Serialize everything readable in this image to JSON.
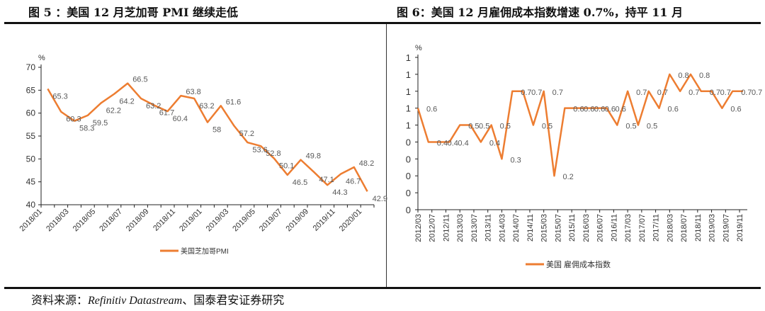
{
  "titles": {
    "left": "图 5 ：美国 12 月芝加哥 PMI 继续走低",
    "right": "图 6：美国 12 月雇佣成本指数增速 0.7%，持平 11 月"
  },
  "footer": {
    "prefix": "资料来源：",
    "source_italic": "Refinitiv Datastream",
    "suffix": "、国泰君安证券研究"
  },
  "colors": {
    "series": "#ED7D31",
    "label": "#595959",
    "axis": "#222222"
  },
  "chart_data": [
    {
      "type": "line",
      "title": "美国12月芝加哥PMI继续走低",
      "ylabel": "%",
      "ylim": [
        40,
        70
      ],
      "yticks": [
        40,
        45,
        50,
        55,
        60,
        65,
        70
      ],
      "xtick_labels": [
        "2018/01",
        "2018/03",
        "2018/05",
        "2018/07",
        "2018/09",
        "2018/11",
        "2019/01",
        "2019/03",
        "2019/05",
        "2019/07",
        "2019/09",
        "2019/11",
        "2020/01"
      ],
      "x": [
        "2018/01",
        "2018/02",
        "2018/03",
        "2018/04",
        "2018/05",
        "2018/06",
        "2018/07",
        "2018/08",
        "2018/09",
        "2018/10",
        "2018/11",
        "2018/12",
        "2019/01",
        "2019/02",
        "2019/03",
        "2019/04",
        "2019/05",
        "2019/06",
        "2019/07",
        "2019/08",
        "2019/09",
        "2019/10",
        "2019/11",
        "2019/12",
        "2020/01"
      ],
      "series": [
        {
          "name": "美国芝加哥PMI",
          "values": [
            65.3,
            60.3,
            58.3,
            59.5,
            62.2,
            64.2,
            66.5,
            63.2,
            61.7,
            60.4,
            63.8,
            63.2,
            58,
            61.6,
            57.2,
            53.6,
            52.8,
            50.1,
            46.5,
            49.8,
            47.1,
            44.3,
            46.7,
            48.2,
            42.9
          ]
        }
      ],
      "legend": "bottom"
    },
    {
      "type": "line",
      "title": "美国12月雇佣成本指数增速0.7%，持平11月",
      "ylabel": "%",
      "ylim": [
        0,
        0.9
      ],
      "yticks": [
        0,
        0.1,
        0.2,
        0.3,
        0.4,
        0.5,
        0.6,
        0.7,
        0.8,
        0.9
      ],
      "ytick_labels": [
        "0",
        "0",
        "0",
        "0",
        "0",
        "1",
        "1",
        "1",
        "1",
        "1"
      ],
      "xtick_labels": [
        "2012/03",
        "2012/07",
        "2012/11",
        "2013/03",
        "2013/07",
        "2013/11",
        "2014/03",
        "2014/07",
        "2014/11",
        "2015/03",
        "2015/07",
        "2015/11",
        "2016/03",
        "2016/07",
        "2016/11",
        "2017/03",
        "2017/07",
        "2017/11",
        "2018/03",
        "2018/07",
        "2018/11",
        "2019/03",
        "2019/07",
        "2019/11"
      ],
      "x": [
        "2012/03",
        "2012/06",
        "2012/09",
        "2012/12",
        "2013/03",
        "2013/06",
        "2013/09",
        "2013/12",
        "2014/03",
        "2014/06",
        "2014/09",
        "2014/12",
        "2015/03",
        "2015/06",
        "2015/09",
        "2015/12",
        "2016/03",
        "2016/06",
        "2016/09",
        "2016/12",
        "2017/03",
        "2017/06",
        "2017/09",
        "2017/12",
        "2018/03",
        "2018/06",
        "2018/09",
        "2018/12",
        "2019/03",
        "2019/06",
        "2019/09",
        "2019/12"
      ],
      "series": [
        {
          "name": "美国 雇佣成本指数",
          "values": [
            0.6,
            0.4,
            0.4,
            0.4,
            0.5,
            0.5,
            0.4,
            0.5,
            0.3,
            0.7,
            0.7,
            0.5,
            0.7,
            0.2,
            0.6,
            0.6,
            0.6,
            0.6,
            0.6,
            0.5,
            0.7,
            0.5,
            0.7,
            0.6,
            0.8,
            0.7,
            0.8,
            0.7,
            0.7,
            0.6,
            0.7,
            0.7
          ]
        }
      ],
      "legend": "bottom"
    }
  ]
}
